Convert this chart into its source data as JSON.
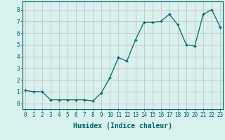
{
  "x": [
    0,
    1,
    2,
    3,
    4,
    5,
    6,
    7,
    8,
    9,
    10,
    11,
    12,
    13,
    14,
    15,
    16,
    17,
    18,
    19,
    20,
    21,
    22,
    23
  ],
  "y": [
    1.1,
    1.0,
    1.0,
    0.3,
    0.3,
    0.3,
    0.3,
    0.3,
    0.2,
    0.9,
    2.2,
    3.9,
    3.6,
    5.4,
    6.9,
    6.9,
    7.0,
    7.6,
    6.7,
    5.0,
    4.9,
    7.6,
    8.0,
    6.5
  ],
  "xlim": [
    -0.3,
    23.3
  ],
  "ylim": [
    -0.5,
    8.7
  ],
  "yticks": [
    0,
    1,
    2,
    3,
    4,
    5,
    6,
    7,
    8
  ],
  "xticks": [
    0,
    1,
    2,
    3,
    4,
    5,
    6,
    7,
    8,
    9,
    10,
    11,
    12,
    13,
    14,
    15,
    16,
    17,
    18,
    19,
    20,
    21,
    22,
    23
  ],
  "xlabel": "Humidex (Indice chaleur)",
  "line_color": "#006666",
  "marker": "+",
  "bg_color": "#d8f0ee",
  "grid_color": "#c8b8b8",
  "xlabel_fontsize": 7,
  "tick_fontsize": 5.5,
  "ylabel_color": "#006666",
  "line_width": 0.9,
  "marker_size": 3.5
}
